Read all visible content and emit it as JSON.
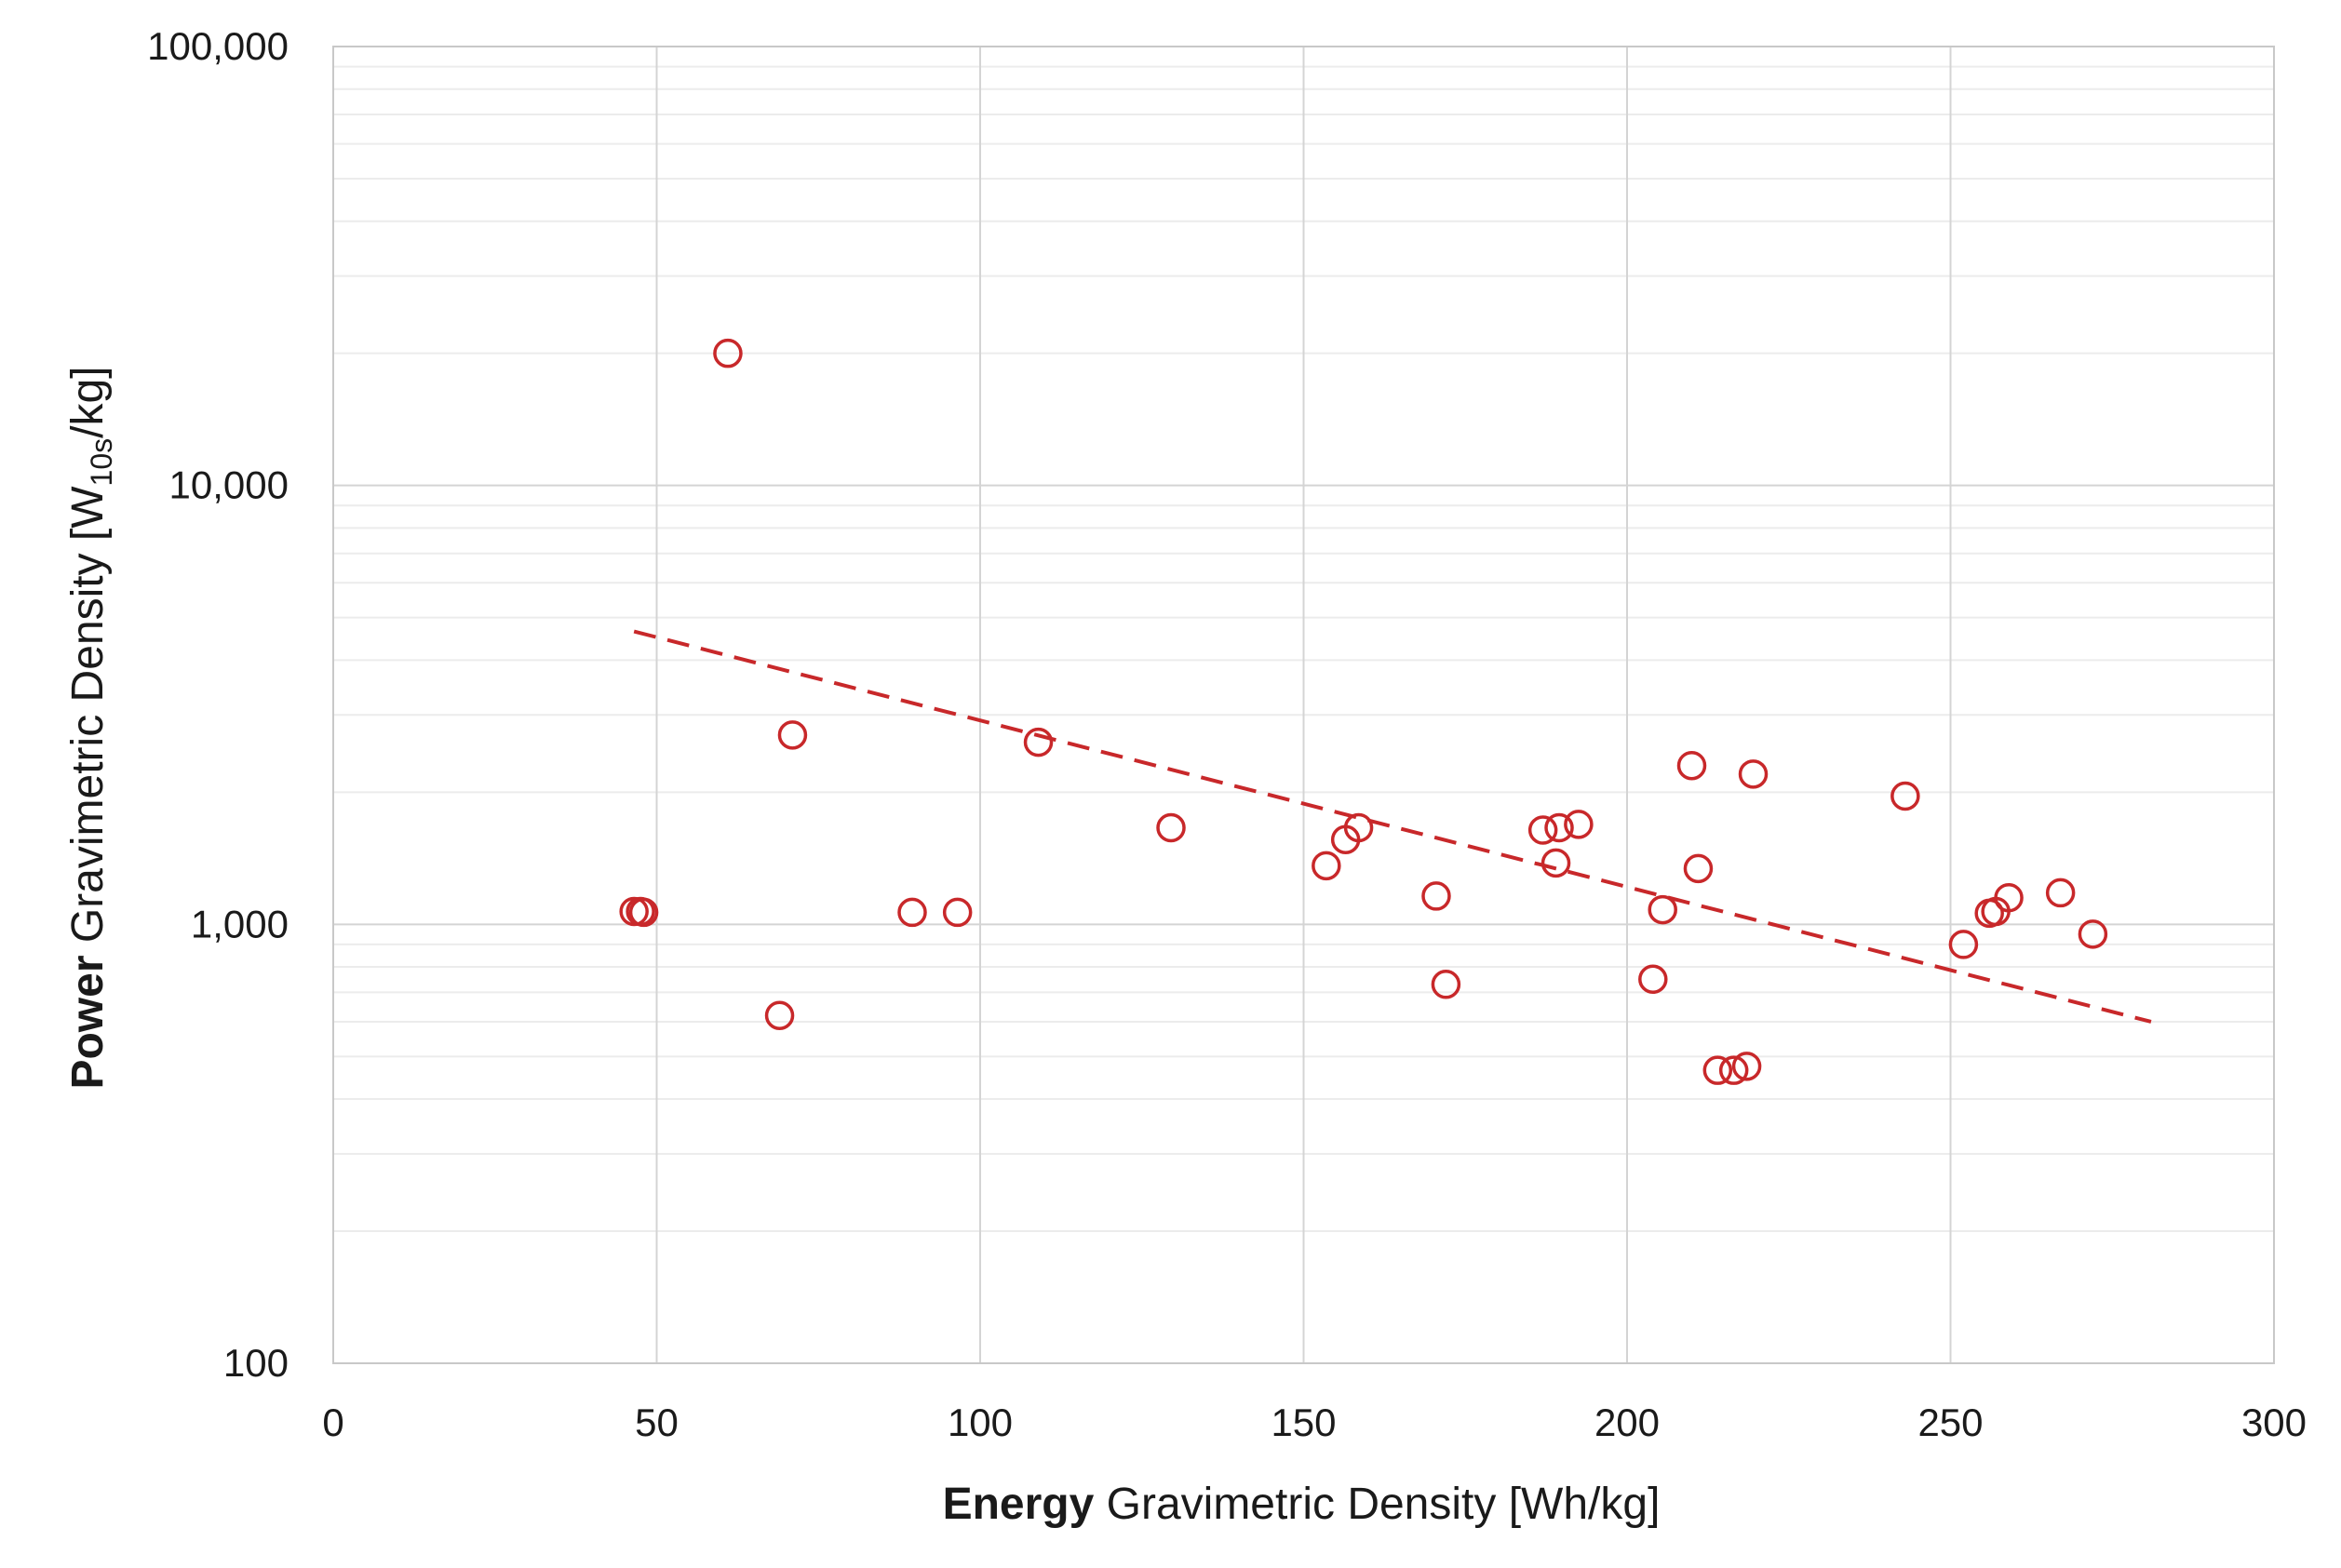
{
  "chart_data": {
    "type": "scatter",
    "title": "",
    "xlabel_bold": "Energy",
    "xlabel_rest": "Gravimetric Density [Wh/kg]",
    "ylabel_bold": "Power",
    "ylabel_rest": "Gravimetric Density [W",
    "ylabel_sub": "10s",
    "ylabel_end": "/kg]",
    "xlim": [
      0,
      300
    ],
    "ylim": [
      100,
      100000
    ],
    "yscale": "log",
    "x_ticks": [
      "0",
      "50",
      "100",
      "150",
      "200",
      "250",
      "300"
    ],
    "y_ticks": [
      "100",
      "1,000",
      "10,000",
      "100,000"
    ],
    "grid": true,
    "colors": {
      "marker": "#c8282a",
      "trendline": "#c8282a",
      "grid_major": "#d4d4d4",
      "grid_minor": "#ececec"
    },
    "series": [
      {
        "marker": "open-circle",
        "points": [
          [
            46.5,
            1070
          ],
          [
            47.5,
            1070
          ],
          [
            48,
            1065
          ],
          [
            61,
            20000
          ],
          [
            69,
            620
          ],
          [
            71,
            2700
          ],
          [
            89.5,
            1065
          ],
          [
            96.5,
            1065
          ],
          [
            109,
            2600
          ],
          [
            129.5,
            1660
          ],
          [
            153.5,
            1360
          ],
          [
            156.5,
            1560
          ],
          [
            158.5,
            1660
          ],
          [
            170.5,
            1160
          ],
          [
            172,
            730
          ],
          [
            187,
            1640
          ],
          [
            189.5,
            1660
          ],
          [
            189,
            1380
          ],
          [
            192.5,
            1690
          ],
          [
            204,
            750
          ],
          [
            205.5,
            1080
          ],
          [
            210,
            2300
          ],
          [
            211,
            1340
          ],
          [
            214,
            465
          ],
          [
            216.5,
            465
          ],
          [
            218.5,
            475
          ],
          [
            219.5,
            2200
          ],
          [
            243,
            1960
          ],
          [
            252,
            900
          ],
          [
            256,
            1060
          ],
          [
            257,
            1070
          ],
          [
            259,
            1150
          ],
          [
            267,
            1180
          ],
          [
            272,
            950
          ]
        ]
      }
    ],
    "trendline": {
      "style": "dashed",
      "x": [
        46.5,
        281
      ],
      "y": [
        4650,
        600
      ]
    }
  }
}
